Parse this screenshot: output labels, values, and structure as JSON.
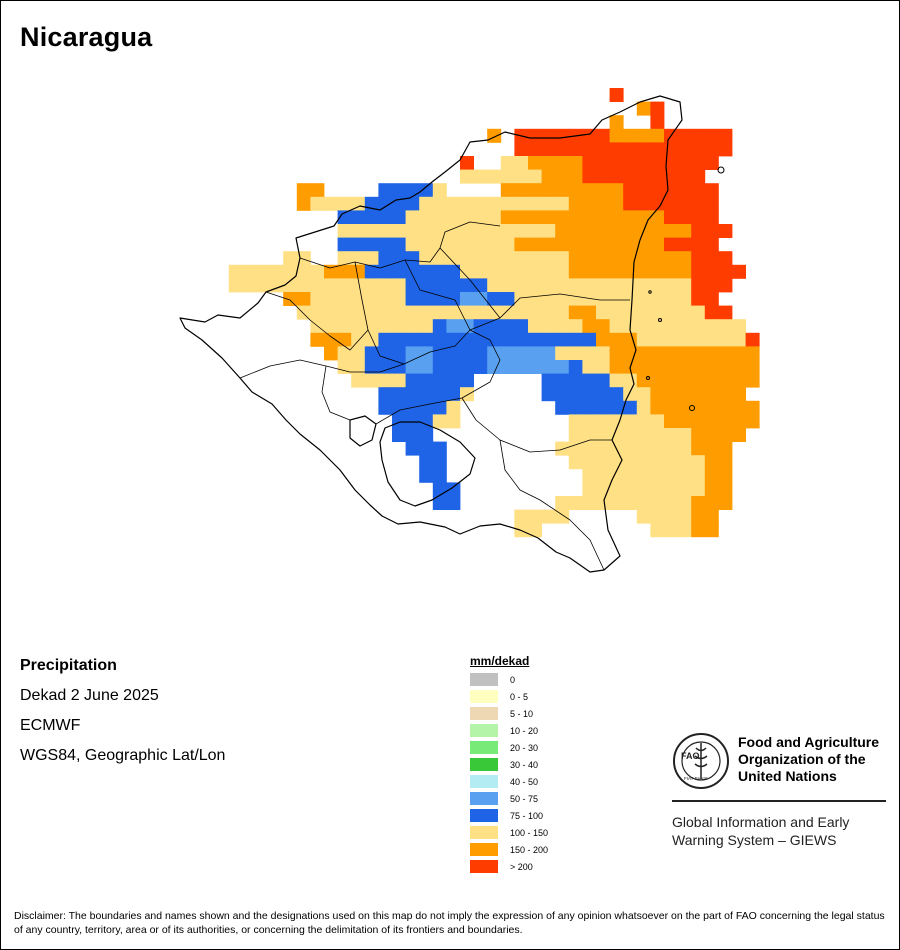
{
  "title": "Nicaragua",
  "info": {
    "variable": "Precipitation",
    "period": "Dekad 2 June 2025",
    "source": "ECMWF",
    "projection": "WGS84, Geographic Lat/Lon"
  },
  "legend": {
    "title": "mm/dekad",
    "items": [
      {
        "label": "0",
        "color": "#c0c0c0"
      },
      {
        "label": "0 - 5",
        "color": "#ffffc0"
      },
      {
        "label": "5 - 10",
        "color": "#eed8b4"
      },
      {
        "label": "10 - 20",
        "color": "#b4f4a8"
      },
      {
        "label": "20 - 30",
        "color": "#78ea78"
      },
      {
        "label": "30 - 40",
        "color": "#38c838"
      },
      {
        "label": "40 - 50",
        "color": "#b4ecf4"
      },
      {
        "label": "50 - 75",
        "color": "#5aa0f0"
      },
      {
        "label": "75 - 100",
        "color": "#1f64e6"
      },
      {
        "label": "100 - 150",
        "color": "#ffe084"
      },
      {
        "label": "150 - 200",
        "color": "#ff9c00"
      },
      {
        "label": "> 200",
        "color": "#ff3c00"
      }
    ]
  },
  "org": {
    "logo_text": "FAO",
    "logo_motto": "FIAT PANIS",
    "name_line1": "Food and Agriculture",
    "name_line2": "Organization of the",
    "name_line3": "United Nations",
    "giews_line1": "Global Information and Early",
    "giews_line2": "Warning System – GIEWS"
  },
  "disclaimer": "Disclaimer: The boundaries and names shown and the designations used on this map do not imply the expression of any opinion whatsoever on the part of FAO concerning the legal status of any country, territory, area or of its authorities, or concerning the delimitation of its frontiers and boundaries.",
  "map_grid": {
    "rows": [
      "...............................R.........",
      ".................................OR.......",
      "...............................O..R.......",
      "......................O.RRRRRRROOOORRRRR..",
      "........................RRRRRRRRRRRRRRRR..",
      "....................R..YYOOOORRRRRRRRRR...",
      "....................YYYYYYOOORRRRRRRRR....",
      "........OO....BBBBY....OOOOOOOOORRRRRRR...",
      "........OYYYYBBBBYYYYYYYYYYYOOOORRRRRRR...",
      "...........BBBBBYYYYYYYOOOOOOOOOOOORRRR...",
      "...........YYYYYYYYYYYYYYYYOOOOOOOOOORRR..",
      "...........BBBBBYYYYYYYYOOOOOOOOOOORRRR...",
      ".......YY..YYYBBBYYYYYYYYYYYOOOOOOOOORRR..",
      "...YYYYYYYOOOBBBBBBBYYYYYYYYOOOOOOOOORRRR.",
      "...YYYYYYYYYYYYYBBBBBBYYYYYYYYYYYYYYYRRR..",
      ".......OOYYYYYYYBBBBLLBBYYYYYYYYYYYYYRR...",
      "........YYYYYYYYYYYYYYYYYYYYOOYYYYYYYYRR..",
      ".........YYYYYYYYYBLLBBBBYYYYOOYYYYYYYYYY.",
      ".........OOOYYBBBBBBBBBBBBBBBBOOOYYYYYYYYR",
      "..........OYYBBBLLBBBBLLLLLYYYYOOOOOOOOOOO",
      "...........YYBBBLLBBBBLLLLLLBYYOOOOOOOOOOO",
      "............YYYYBBBBB.....BBBBBYYOOOOOOOOO",
      "..............BBBBBBY.....BBBBBBYYOOOOOOO.",
      "..............BBBBBY.......BBBBBBYOOOOOOOO",
      "...............BBBYY........YYYYYYYOOOOOOO",
      "...............BBB..........YYYYYYYYYOOOO.",
      "................BBB........YYYYYYYYYYOOO..",
      ".................BB.........YYYYYYYYYYOO..",
      ".................BB..........YYYYYYYYYOO..",
      "..................BB.........YYYYYYYYYOO..",
      "..................BB.......YYYYYYYYYYOOO..",
      "........................YYYY.....YYYYOO...",
      "........................YY........YYYOO..."
    ],
    "color_key": {
      "Y": "#ffe084",
      "O": "#ff9c00",
      "R": "#ff3c00",
      "B": "#1f64e6",
      "L": "#5aa0f0"
    }
  }
}
